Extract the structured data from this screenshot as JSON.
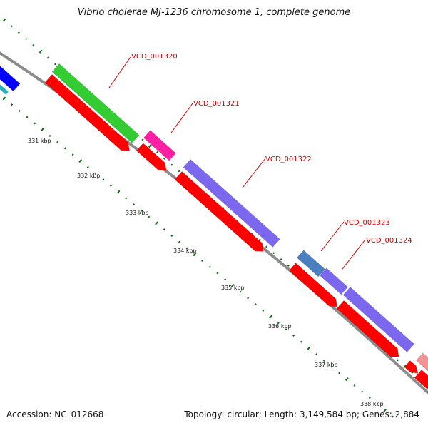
{
  "header": {
    "title": "Vibrio cholerae MJ-1236 chromosome 1, complete genome"
  },
  "footer": {
    "accession": "Accession: NC_012668",
    "summary": "Topology: circular; Length: 3,149,584 bp; Genes: 2,884"
  },
  "colors": {
    "backbone": "#8c8c8c",
    "cds": "#ff0000",
    "tick": "#0d6e0d",
    "label": "#d00000",
    "green": "#33cc33",
    "magenta": "#ff1fa5",
    "purple": "#7b68ee",
    "steelblue": "#4a7fc0",
    "blue": "#0000ff",
    "cyan": "#20b2c0",
    "pink": "#f29494"
  },
  "ticks": [
    "331 kbp",
    "332 kbp",
    "333 kbp",
    "334 kbp",
    "335 kbp",
    "336 kbp",
    "337 kbp",
    "338 kbp"
  ],
  "genes": [
    "VCD_001320",
    "VCD_001321",
    "VCD_001322",
    "VCD_001323",
    "VCD_001324"
  ]
}
